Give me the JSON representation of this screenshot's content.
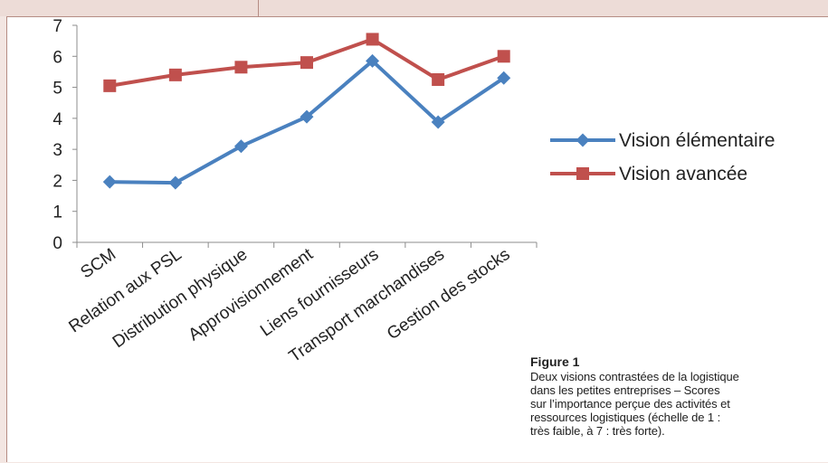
{
  "chart_data": {
    "type": "line",
    "categories": [
      "SCM",
      "Relation aux PSL",
      "Distribution physique",
      "Approvisionnement",
      "Liens fournisseurs",
      "Transport marchandises",
      "Gestion des stocks"
    ],
    "series": [
      {
        "name": "Vision élémentaire",
        "values": [
          1.95,
          1.92,
          3.1,
          4.05,
          5.85,
          3.88,
          5.3
        ],
        "color": "#4a81bf",
        "marker": "diamond"
      },
      {
        "name": "Vision avancée",
        "values": [
          5.05,
          5.4,
          5.65,
          5.8,
          6.55,
          5.25,
          6.0
        ],
        "color": "#c0504d",
        "marker": "square"
      }
    ],
    "ylim": [
      0,
      7
    ],
    "yticks": [
      "0",
      "1",
      "2",
      "3",
      "4",
      "5",
      "6",
      "7"
    ],
    "xlabel": "",
    "ylabel": "",
    "grid": false,
    "legend_position": "right"
  },
  "figure": {
    "title": "Figure 1",
    "caption": "Deux visions contrastées de la logistique\ndans les petites entreprises – Scores\nsur l’importance perçue des activités et\nressources logistiques (échelle de 1 :\ntrès faible, à 7 : très forte)."
  }
}
